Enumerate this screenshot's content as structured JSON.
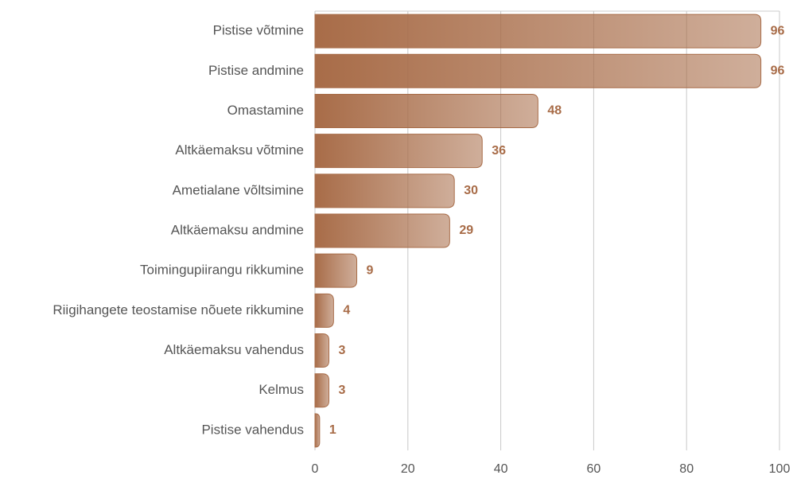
{
  "chart_data": {
    "type": "bar",
    "orientation": "horizontal",
    "categories": [
      "Pistise võtmine",
      "Pistise andmine",
      "Omastamine",
      "Altkäemaksu võtmine",
      "Ametialane võltsimine",
      "Altkäemaksu andmine",
      "Toimingupiirangu rikkumine",
      "Riigihangete teostamise nõuete rikkumine",
      "Altkäemaksu vahendus",
      "Kelmus",
      "Pistise vahendus"
    ],
    "values": [
      96,
      96,
      48,
      36,
      30,
      29,
      9,
      4,
      3,
      3,
      1
    ],
    "color": "#a86c48",
    "xlim": [
      0,
      100
    ],
    "xticks": [
      0,
      20,
      40,
      60,
      80,
      100
    ],
    "grid": true
  }
}
